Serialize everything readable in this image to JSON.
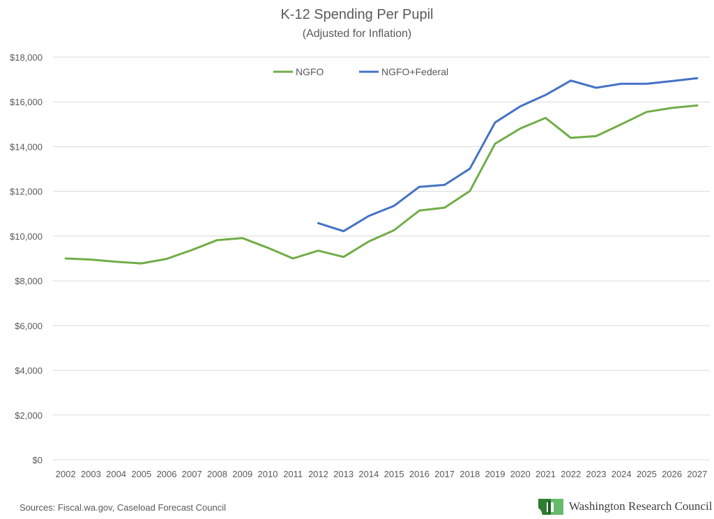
{
  "chart_data": {
    "type": "line",
    "title": "K-12 Spending Per Pupil",
    "subtitle": "(Adjusted for Inflation)",
    "categories": [
      "2002",
      "2003",
      "2004",
      "2005",
      "2006",
      "2007",
      "2008",
      "2009",
      "2010",
      "2011",
      "2012",
      "2013",
      "2014",
      "2015",
      "2016",
      "2017",
      "2018",
      "2019",
      "2020",
      "2021",
      "2022",
      "2023",
      "2024",
      "2025",
      "2026",
      "2027"
    ],
    "series": [
      {
        "name": "NGFO",
        "color": "#70ad47",
        "values": [
          9000,
          8950,
          8850,
          8780,
          8980,
          9380,
          9820,
          9910,
          9480,
          9000,
          9350,
          9070,
          9760,
          10260,
          11140,
          11270,
          12010,
          14130,
          14810,
          15280,
          14390,
          14470,
          15000,
          15550,
          15730,
          15840
        ]
      },
      {
        "name": "NGFO+Federal",
        "color": "#4472c4",
        "values": [
          null,
          null,
          null,
          null,
          null,
          null,
          null,
          null,
          null,
          null,
          10580,
          10220,
          10900,
          11350,
          12200,
          12290,
          13010,
          15080,
          15800,
          16310,
          16950,
          16630,
          16810,
          16810,
          16930,
          17060
        ]
      }
    ],
    "ylim": [
      0,
      18000
    ],
    "yticks": [
      0,
      2000,
      4000,
      6000,
      8000,
      10000,
      12000,
      14000,
      16000,
      18000
    ],
    "ytick_labels": [
      "$0",
      "$2,000",
      "$4,000",
      "$6,000",
      "$8,000",
      "$10,000",
      "$12,000",
      "$14,000",
      "$16,000",
      "$18,000"
    ],
    "grid": true,
    "legend_position": "top-center"
  },
  "footer": {
    "source": "Sources: Fiscal.wa.gov, Caseload Forecast Council",
    "logo_text": "Washington Research Council"
  },
  "colors": {
    "grid": "#d9d9d9",
    "text": "#595959"
  }
}
